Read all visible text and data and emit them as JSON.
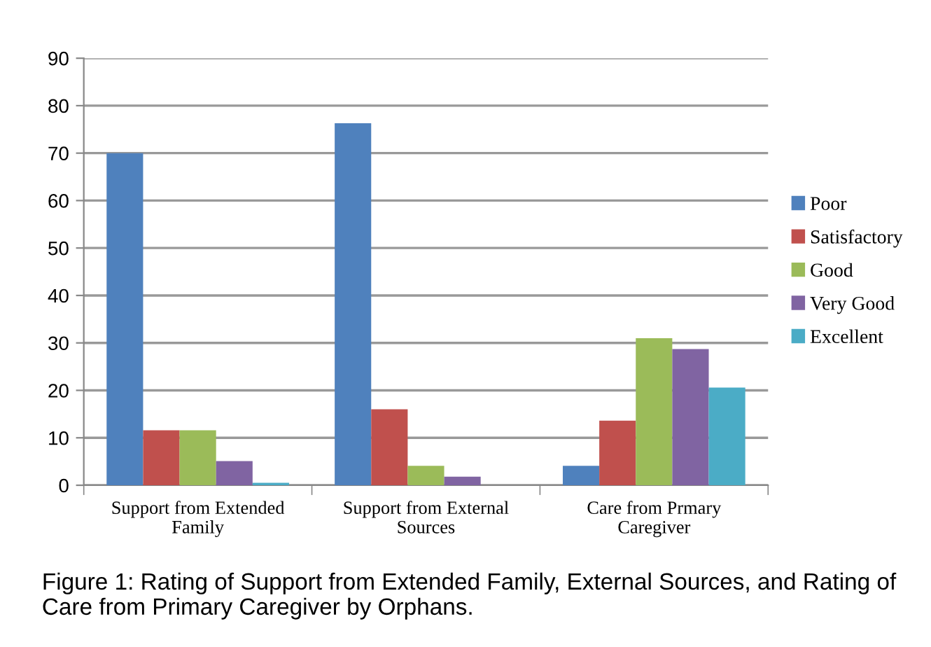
{
  "chart_data": {
    "type": "bar",
    "categories": [
      "Support from Extended\nFamily",
      "Support from External\nSources",
      "Care from Prmary\nCaregiver"
    ],
    "series": [
      {
        "name": "Poor",
        "color": "#4f81bd",
        "values": [
          70,
          76.3,
          4.1
        ]
      },
      {
        "name": "Satisfactory",
        "color": "#c0504d",
        "values": [
          11.6,
          16,
          13.6
        ]
      },
      {
        "name": "Good",
        "color": "#9bbb59",
        "values": [
          11.6,
          4.1,
          31
        ]
      },
      {
        "name": "Very Good",
        "color": "#8064a2",
        "values": [
          5.1,
          1.8,
          28.7
        ]
      },
      {
        "name": "Excellent",
        "color": "#4bacc6",
        "values": [
          0.5,
          0,
          20.6
        ]
      }
    ],
    "ylim": [
      0,
      90
    ],
    "yticks": [
      0,
      10,
      20,
      30,
      40,
      50,
      60,
      70,
      80,
      90
    ],
    "grid": "y",
    "legend": "right",
    "annotations": [
      "Figure 1: Rating of Support from Extended Family, External Sources, and Rating of Care from Primary Caregiver by Orphans."
    ]
  }
}
